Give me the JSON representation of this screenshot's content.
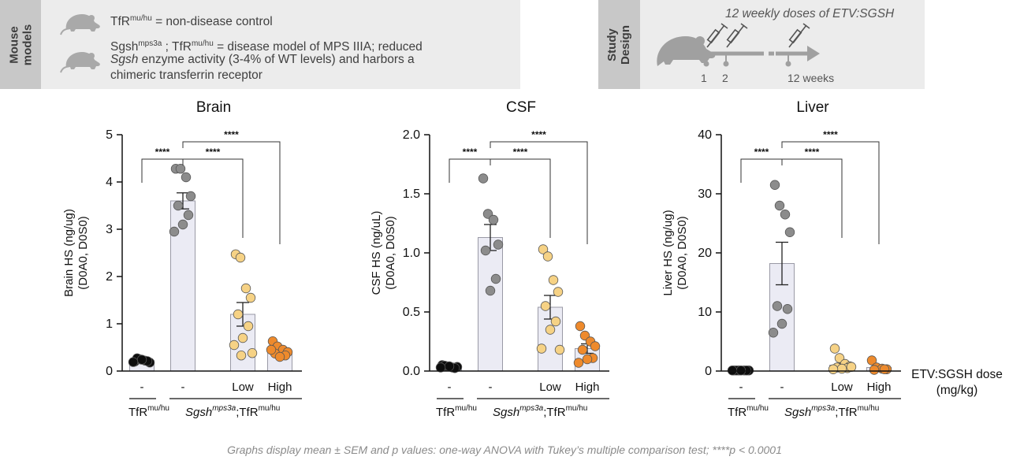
{
  "mouse_models": {
    "tab_label": "Mouse\nmodels",
    "control": {
      "name": "TfR",
      "sup": "mu/hu",
      "text": " = non-disease control"
    },
    "disease": {
      "part1": "Sgsh",
      "sup1": "mps3a",
      "part2": " ; TfR",
      "sup2": "mu/hu",
      "part3": " = disease model of MPS IIIA; reduced",
      "line2_italic": "Sgsh",
      "line2_rest": " enzyme activity (3-4% of WT levels) and harbors a",
      "line3": "chimeric transferrin receptor"
    }
  },
  "study_design": {
    "tab_label": "Study\nDesign",
    "heading": "12 weekly doses of ETV:SGSH",
    "ticks": [
      "1",
      "2",
      "12 weeks"
    ]
  },
  "colors": {
    "grey": "#8c8c8c",
    "light_yellow": "#f6d285",
    "orange": "#ee8a2c",
    "black": "#0d0d0d",
    "bar": "#ebebf4"
  },
  "x_categories": [
    "-",
    "-",
    "Low",
    "High"
  ],
  "group_labels": {
    "tfr": "TfR",
    "tfr_sup": "mu/hu",
    "sgsh": "Sgsh",
    "sgsh_sup": "mps3a",
    "sgsh_tail": ";TfR",
    "sgsh_tail_sup": "mu/hu"
  },
  "dose_label": {
    "line1": "ETV:SGSH dose",
    "line2": "(mg/kg)"
  },
  "significance": "****",
  "footnote": "Graphs display mean ± SEM and p values: one-way ANOVA with Tukey’s multiple comparison test; ****p < 0.0001",
  "chart_data": [
    {
      "type": "bar",
      "title": "Brain",
      "ylabel": [
        "Brain HS (ng/ug)",
        "(D0A0, D0S0)"
      ],
      "ylim": [
        0,
        5
      ],
      "yticks": [
        "0",
        "1",
        "2",
        "3",
        "4",
        "5"
      ],
      "ytick_values": [
        0,
        1,
        2,
        3,
        4,
        5
      ],
      "groups": [
        {
          "mean": 0.22,
          "sem": 0.02,
          "color": "black",
          "points": [
            0.2,
            0.25,
            0.22,
            0.18,
            0.27,
            0.21,
            0.24,
            0.19
          ]
        },
        {
          "mean": 3.6,
          "sem": 0.17,
          "color": "grey",
          "points": [
            4.28,
            4.28,
            4.1,
            3.7,
            3.5,
            3.3,
            3.1,
            2.95
          ]
        },
        {
          "mean": 1.2,
          "sem": 0.25,
          "color": "light_yellow",
          "points": [
            2.47,
            2.4,
            1.75,
            1.55,
            1.2,
            0.95,
            0.7,
            0.55,
            0.38,
            0.33
          ]
        },
        {
          "mean": 0.42,
          "sem": 0.05,
          "color": "orange",
          "points": [
            0.63,
            0.52,
            0.45,
            0.4,
            0.37,
            0.33,
            0.3,
            0.45
          ]
        }
      ]
    },
    {
      "type": "bar",
      "title": "CSF",
      "ylabel": [
        "CSF HS (ng/uL)",
        "(D0A0, D0S0)"
      ],
      "ylim": [
        0,
        2
      ],
      "yticks": [
        "0.0",
        "0.5",
        "1.0",
        "1.5",
        "2.0"
      ],
      "ytick_values": [
        0,
        0.5,
        1,
        1.5,
        2
      ],
      "groups": [
        {
          "mean": 0.035,
          "sem": 0.005,
          "color": "black",
          "points": [
            0.05,
            0.04,
            0.03,
            0.035,
            0.045,
            0.025,
            0.04,
            0.03
          ]
        },
        {
          "mean": 1.13,
          "sem": 0.11,
          "color": "grey",
          "points": [
            1.63,
            1.33,
            1.28,
            1.07,
            1.02,
            0.78,
            0.68
          ]
        },
        {
          "mean": 0.54,
          "sem": 0.1,
          "color": "light_yellow",
          "points": [
            1.03,
            0.97,
            0.77,
            0.67,
            0.55,
            0.42,
            0.35,
            0.19,
            0.18
          ]
        },
        {
          "mean": 0.19,
          "sem": 0.04,
          "color": "orange",
          "points": [
            0.38,
            0.3,
            0.25,
            0.21,
            0.18,
            0.11,
            0.1,
            0.07
          ]
        }
      ]
    },
    {
      "type": "bar",
      "title": "Liver",
      "ylabel": [
        "Liver HS (ng/ug)",
        "(D0A0, D0S0)"
      ],
      "ylim": [
        0,
        40
      ],
      "yticks": [
        "0",
        "10",
        "20",
        "30",
        "40"
      ],
      "ytick_values": [
        0,
        10,
        20,
        30,
        40
      ],
      "groups": [
        {
          "mean": 0.1,
          "sem": 0.02,
          "color": "black",
          "points": [
            0.1,
            0.1,
            0.1,
            0.1,
            0.1,
            0.1,
            0.1,
            0.1
          ]
        },
        {
          "mean": 18.2,
          "sem": 3.6,
          "color": "grey",
          "points": [
            31.5,
            28,
            26.5,
            23.5,
            11,
            10.5,
            8,
            6.5
          ]
        },
        {
          "mean": 1.0,
          "sem": 0.3,
          "color": "light_yellow",
          "points": [
            3.8,
            2.2,
            1.2,
            0.8,
            0.6,
            0.5,
            0.4,
            0.3,
            0.7
          ]
        },
        {
          "mean": 0.6,
          "sem": 0.2,
          "color": "orange",
          "points": [
            1.8,
            0.6,
            0.4,
            0.3,
            0.2,
            0.3
          ]
        }
      ]
    }
  ]
}
